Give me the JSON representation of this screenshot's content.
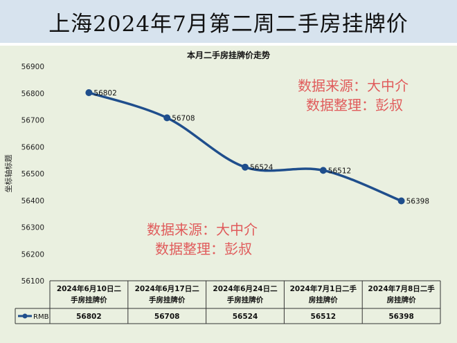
{
  "banner": {
    "title": "上海2024年7月第二周二手房挂牌价"
  },
  "watermarks": {
    "top": {
      "line1": "数据来源：大中介",
      "line2": "数据整理：彭叔"
    },
    "bottom": {
      "line1": "数据来源：大中介",
      "line2": "数据整理：彭叔"
    }
  },
  "colors": {
    "line": "#1f4e8c",
    "background": "#eaf0e0",
    "banner": "#d7e3ee",
    "watermark": "#e05b5b"
  },
  "chart_data": {
    "type": "line",
    "title": "本月二手房挂牌价走势",
    "ylabel": "坐标轴标题",
    "xlabel": "",
    "ylim": [
      56100,
      56900
    ],
    "yticks": [
      56100,
      56200,
      56300,
      56400,
      56500,
      56600,
      56700,
      56800,
      56900
    ],
    "grid": false,
    "legend": "bottom-left table",
    "categories": [
      [
        "2024年6月10日二",
        "手房挂牌价"
      ],
      [
        "2024年6月17日二",
        "手房挂牌价"
      ],
      [
        "2024年6月24日二",
        "手房挂牌价"
      ],
      [
        "2024年7月1日二手",
        "房挂牌价"
      ],
      [
        "2024年7月8日二手",
        "房挂牌价"
      ]
    ],
    "series": [
      {
        "name": "RMB",
        "values": [
          56802,
          56708,
          56524,
          56512,
          56398
        ]
      }
    ]
  }
}
